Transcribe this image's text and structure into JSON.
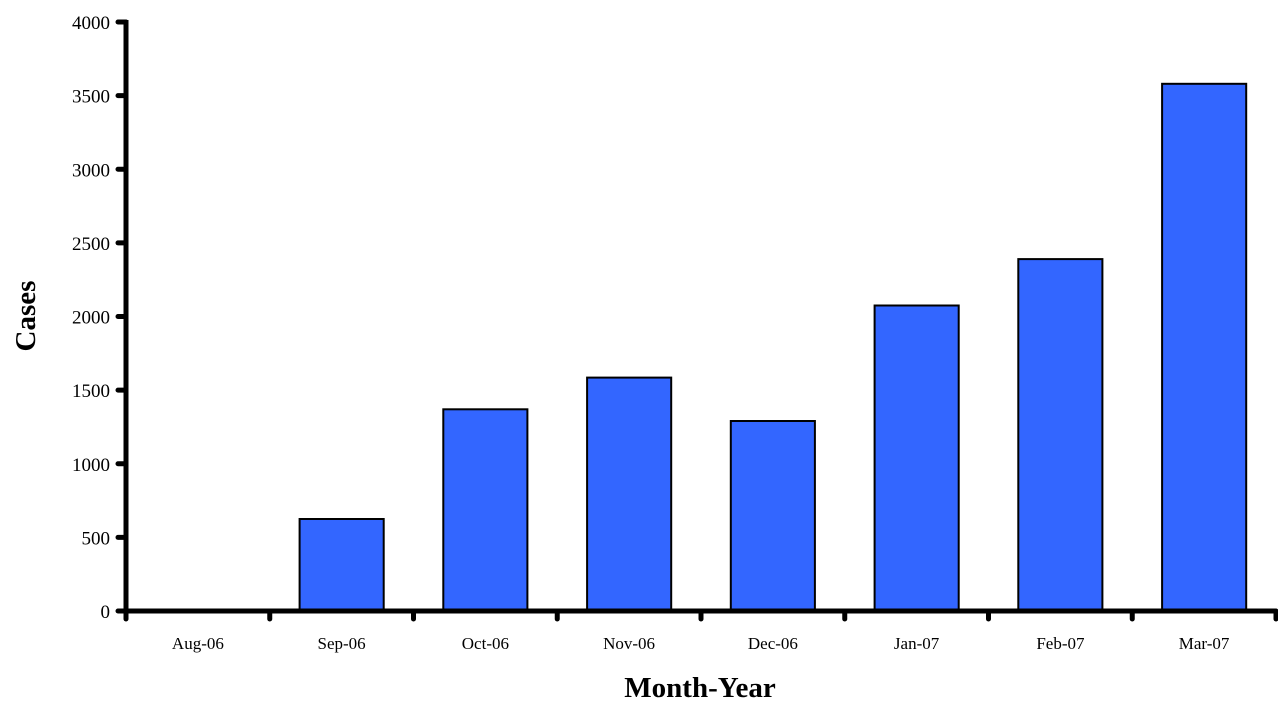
{
  "chart_data": {
    "type": "bar",
    "categories": [
      "Aug-06",
      "Sep-06",
      "Oct-06",
      "Nov-06",
      "Dec-06",
      "Jan-07",
      "Feb-07",
      "Mar-07"
    ],
    "values": [
      0,
      625,
      1370,
      1585,
      1290,
      2075,
      2390,
      3580
    ],
    "xlabel": "Month-Year",
    "ylabel": "Cases",
    "ylim": [
      0,
      4000
    ],
    "yticks": [
      0,
      500,
      1000,
      1500,
      2000,
      2500,
      3000,
      3500,
      4000
    ],
    "grid": false,
    "legend": "none",
    "bar_color": "#3366FF",
    "bar_edge_color": "#000000",
    "axis_color": "#000000"
  }
}
